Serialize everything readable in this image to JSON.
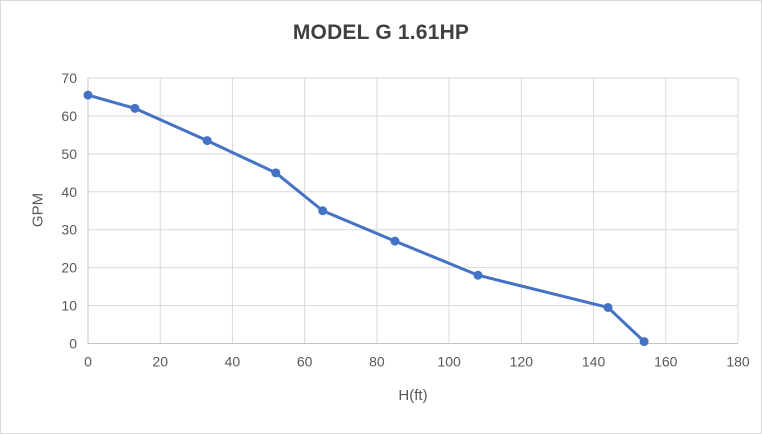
{
  "chart_data": {
    "type": "line",
    "title": "MODEL G 1.61HP",
    "xlabel": "H(ft)",
    "ylabel": "GPM",
    "x": [
      0,
      13,
      33,
      52,
      65,
      85,
      108,
      144,
      154
    ],
    "y": [
      65.5,
      62,
      53.5,
      45,
      35,
      27,
      18,
      9.5,
      0.5
    ],
    "xlim": [
      0,
      180
    ],
    "ylim": [
      0,
      70
    ],
    "xticks": [
      0,
      20,
      40,
      60,
      80,
      100,
      120,
      140,
      160,
      180
    ],
    "yticks": [
      0,
      10,
      20,
      30,
      40,
      50,
      60,
      70
    ],
    "grid": true,
    "legend": false,
    "marker": "circle",
    "series_name": ""
  },
  "style": {
    "series_color": "#4472C4",
    "grid_color": "#D9D9D9",
    "axis_color": "#C6C6C6",
    "tick_text_color": "#595959",
    "axis_title_color": "#595959",
    "title_color": "#404040",
    "background": "#FFFFFF",
    "border_color": "#D9D9D9"
  }
}
